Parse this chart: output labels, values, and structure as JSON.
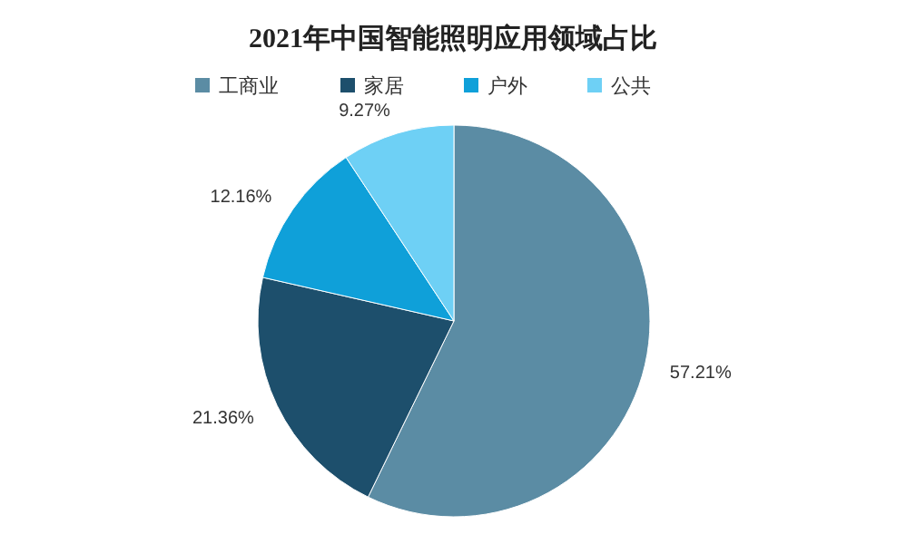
{
  "chart_data": {
    "type": "pie",
    "title": "2021年中国智能照明应用领域占比",
    "categories": [
      "工商业",
      "家居",
      "户外",
      "公共"
    ],
    "values": [
      57.21,
      21.36,
      12.16,
      9.27
    ],
    "colors": [
      "#5b8ca4",
      "#1d4f6c",
      "#0fa0d9",
      "#6ed0f5"
    ],
    "value_labels": [
      "57.21%",
      "21.36%",
      "12.16%",
      "9.27%"
    ],
    "legend": "top"
  }
}
